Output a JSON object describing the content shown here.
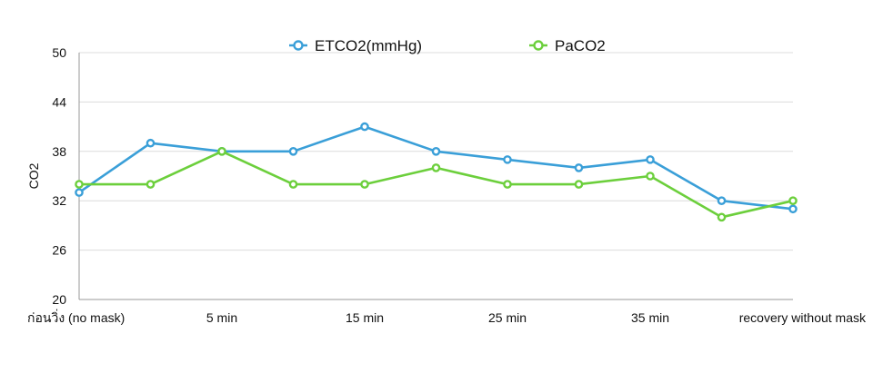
{
  "chart_data": {
    "type": "line",
    "title": "",
    "xlabel": "",
    "ylabel": "CO2",
    "ylim": [
      20,
      50
    ],
    "yticks": [
      "20",
      "26",
      "32",
      "38",
      "44",
      "50"
    ],
    "grid": "horizontal",
    "legend_position": "top-center",
    "categories": [
      "ก่อนวิ่ง (no mask)",
      "",
      "5 min",
      "",
      "15 min",
      "",
      "25 min",
      "",
      "35 min",
      "",
      "recovery without mask"
    ],
    "series": [
      {
        "name": "ETCO2(mmHg)",
        "color": "#3a9fd8",
        "values": [
          33,
          39,
          38,
          38,
          41,
          38,
          37,
          36,
          37,
          32,
          31
        ]
      },
      {
        "name": "PaCO2",
        "color": "#6ccf3c",
        "values": [
          34,
          34,
          38,
          34,
          34,
          36,
          34,
          34,
          35,
          30,
          32
        ]
      }
    ]
  }
}
